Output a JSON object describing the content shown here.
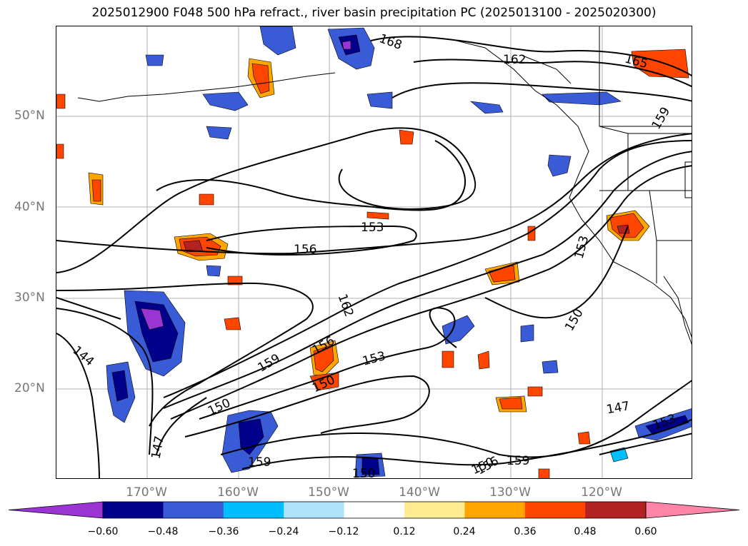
{
  "title": "2025012900 F048 500 hPa refract., river basin precipitation PC (2025013100 - 2025020300)",
  "latitude_labels": [
    "50°N",
    "40°N",
    "30°N",
    "20°N"
  ],
  "longitude_labels": [
    "170°W",
    "160°W",
    "150°W",
    "140°W",
    "130°W",
    "120°W"
  ],
  "contour_labels": [
    "168",
    "162",
    "165",
    "159",
    "153",
    "156",
    "153",
    "162",
    "156",
    "153",
    "150",
    "150",
    "144",
    "159",
    "150",
    "147",
    "147",
    "159",
    "150",
    "156",
    "159",
    "150",
    "153"
  ],
  "colorbar": {
    "ticks": [
      "−0.60",
      "−0.48",
      "−0.36",
      "−0.24",
      "−0.12",
      "0.12",
      "0.24",
      "0.36",
      "0.48",
      "0.60"
    ],
    "colors": [
      "#9a35d4",
      "#00008b",
      "#3a5bd6",
      "#00bfff",
      "#aee3fb",
      "#ffffff",
      "#ffec91",
      "#ffa500",
      "#ff4500",
      "#b22222",
      "#ff85a8"
    ]
  }
}
